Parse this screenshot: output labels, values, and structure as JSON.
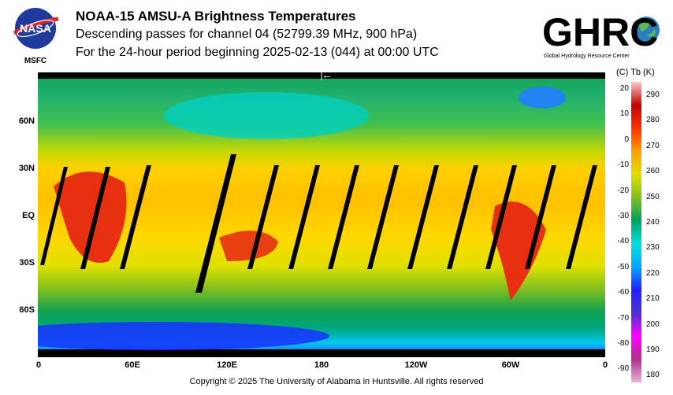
{
  "header": {
    "title": "NOAA-15 AMSU-A Brightness Temperatures",
    "subtitle": "Descending passes for channel 04 (52799.39 MHz, 900 hPa)",
    "period": "For the 24-hour period beginning 2025-02-13 (044) at 00:00 UTC"
  },
  "logos": {
    "nasa_text": "NASA",
    "nasa_caption": "MSFC",
    "ghrc_text": "GHRC",
    "ghrc_caption": "Global Hydrology Resource Center"
  },
  "map": {
    "lat_labels": [
      "60N",
      "30N",
      "EQ",
      "30S",
      "60S"
    ],
    "lon_labels": [
      "0",
      "60E",
      "120E",
      "180",
      "120W",
      "60W",
      "0"
    ],
    "arrow": "←"
  },
  "colorbar": {
    "header": "(C)  Tb  (K)",
    "celsius": [
      "20",
      "10",
      "0",
      "-10",
      "-20",
      "-30",
      "-40",
      "-50",
      "-60",
      "-70",
      "-80",
      "-90"
    ],
    "kelvin": [
      "290",
      "280",
      "270",
      "260",
      "250",
      "240",
      "230",
      "220",
      "210",
      "200",
      "190",
      "180"
    ],
    "stops": [
      "#e8b4d8",
      "#b0308c",
      "#ff00ff",
      "#5030d0",
      "#2020ff",
      "#00a8ff",
      "#00e0e0",
      "#00a060",
      "#80c020",
      "#e0e000",
      "#ffa000",
      "#ff3000",
      "#c00000",
      "#ffc8c8"
    ]
  },
  "footer": {
    "copyright": "Copyright © 2025 The University of Alabama in Huntsville.  All rights reserved"
  }
}
